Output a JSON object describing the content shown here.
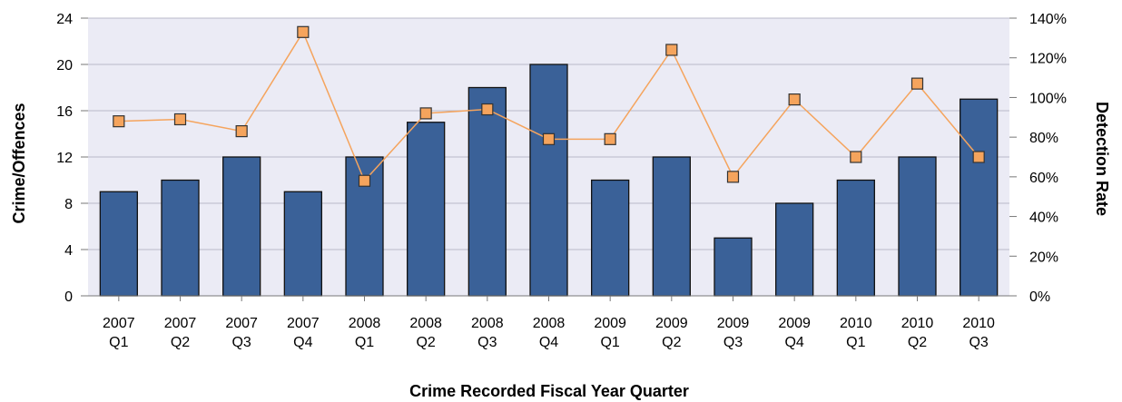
{
  "chart_data": {
    "type": "bar",
    "categories": [
      [
        "2007",
        "Q1"
      ],
      [
        "2007",
        "Q2"
      ],
      [
        "2007",
        "Q3"
      ],
      [
        "2007",
        "Q4"
      ],
      [
        "2008",
        "Q1"
      ],
      [
        "2008",
        "Q2"
      ],
      [
        "2008",
        "Q3"
      ],
      [
        "2008",
        "Q4"
      ],
      [
        "2009",
        "Q1"
      ],
      [
        "2009",
        "Q2"
      ],
      [
        "2009",
        "Q3"
      ],
      [
        "2009",
        "Q4"
      ],
      [
        "2010",
        "Q1"
      ],
      [
        "2010",
        "Q2"
      ],
      [
        "2010",
        "Q3"
      ]
    ],
    "series": [
      {
        "type": "bar",
        "axis": "left",
        "values": [
          9,
          10,
          12,
          9,
          12,
          15,
          18,
          20,
          10,
          12,
          5,
          8,
          10,
          12,
          17
        ],
        "color": "#3a6198"
      },
      {
        "type": "line",
        "axis": "right",
        "unit": "%",
        "values": [
          88,
          89,
          83,
          133,
          58,
          92,
          94,
          79,
          79,
          124,
          60,
          99,
          70,
          107,
          70
        ],
        "color": "#f5a45d",
        "marker": "square"
      }
    ],
    "xlabel": "Crime Recorded Fiscal Year Quarter",
    "ylabel": "Crime/Offences",
    "y2label": "Detection Rate",
    "ylim": [
      0,
      24
    ],
    "yticks": [
      0,
      4,
      8,
      12,
      16,
      20,
      24
    ],
    "y2lim": [
      0,
      140
    ],
    "y2ticks": [
      "0%",
      "20%",
      "40%",
      "60%",
      "80%",
      "100%",
      "120%",
      "140%"
    ],
    "grid": true,
    "plot_background": "#ebebf5",
    "legend": "none"
  }
}
